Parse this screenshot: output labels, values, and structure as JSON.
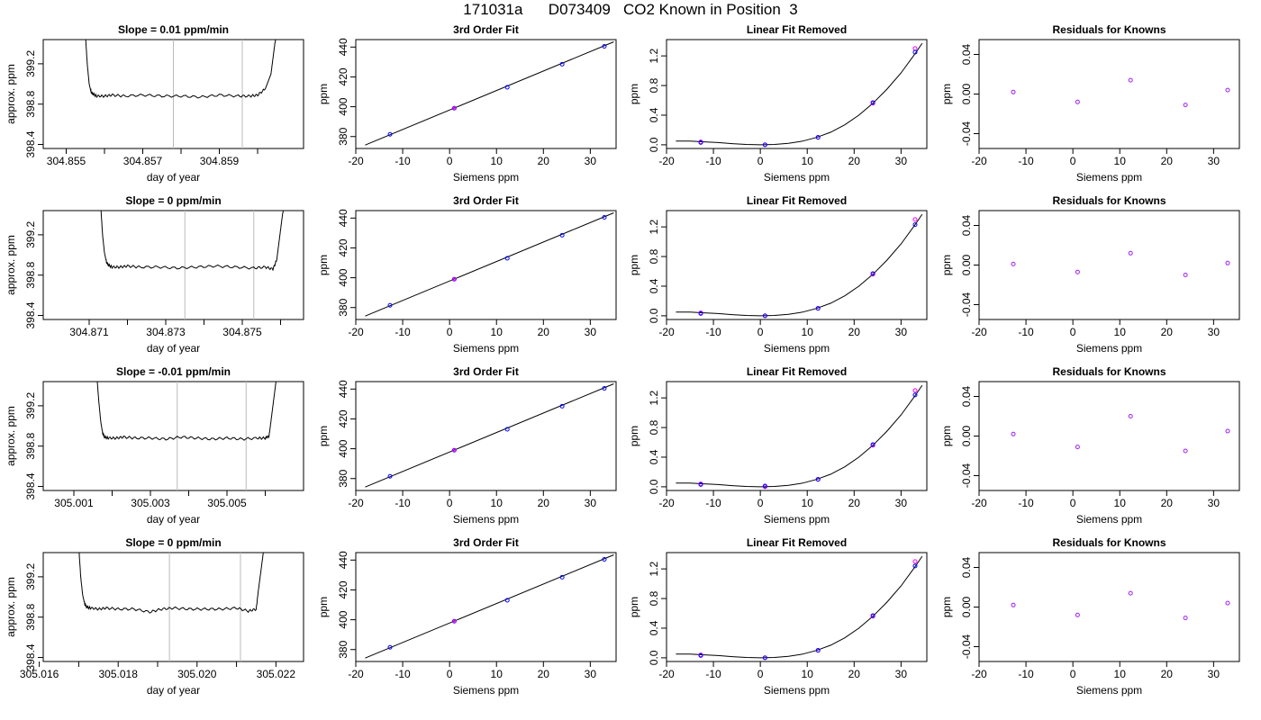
{
  "main_title": "171031a      D073409   CO2 Known in Position  3",
  "colors": {
    "frame": "#000000",
    "trace": "#000000",
    "fit_line": "#000000",
    "window_marker": "#bbbbbb",
    "known_points": "#0000ff",
    "fit_points": "#ff00ff",
    "residual_points": "#a020f0"
  },
  "chart_data": [
    {
      "type": "line",
      "title": "Slope =  0.01  ppm/min",
      "xlabel": "day of year",
      "ylabel": "approx. ppm",
      "xlim": [
        304.8544,
        304.8612
      ],
      "ylim": [
        398.36,
        399.44
      ],
      "xticks": [
        304.855,
        304.857,
        304.859
      ],
      "xticks_minor": [
        304.856,
        304.858,
        304.86
      ],
      "yticks": [
        398.4,
        398.8,
        399.2
      ],
      "window": [
        304.8578,
        304.8596
      ],
      "trace": {
        "x": [
          304.8555,
          304.85555,
          304.8556,
          304.85565,
          304.8557,
          304.8558,
          304.856,
          304.8562,
          304.8565,
          304.857,
          304.8575,
          304.858,
          304.8585,
          304.859,
          304.8595,
          304.8598,
          304.86,
          304.8602,
          304.86035,
          304.8604,
          304.86045,
          304.8605
        ],
        "y": [
          399.5,
          399.2,
          399.0,
          398.92,
          398.9,
          398.88,
          398.88,
          398.89,
          398.88,
          398.89,
          398.88,
          398.88,
          398.87,
          398.89,
          398.88,
          398.88,
          398.89,
          398.95,
          399.1,
          399.25,
          399.4,
          399.5
        ]
      },
      "grid": false
    },
    {
      "type": "scatter",
      "title": "3rd Order Fit",
      "xlabel": "Siemens ppm",
      "ylabel": "ppm",
      "xlim": [
        -20,
        35.5
      ],
      "ylim": [
        372,
        445
      ],
      "xticks": [
        -20,
        -10,
        0,
        10,
        20,
        30
      ],
      "yticks": [
        380,
        400,
        420,
        440
      ],
      "points": {
        "x": [
          -12.7,
          1.0,
          12.3,
          24.0,
          33.0
        ],
        "y": [
          381.5,
          399.0,
          413.0,
          428.5,
          440.5
        ]
      },
      "fit_line": {
        "x": [
          -18,
          35
        ],
        "y": [
          374.3,
          443.5
        ]
      },
      "grid": false
    },
    {
      "type": "scatter",
      "title": "Linear Fit Removed",
      "xlabel": "Siemens ppm",
      "ylabel": "ppm",
      "xlim": [
        -20,
        35.5
      ],
      "ylim": [
        -0.05,
        1.42
      ],
      "xticks": [
        -20,
        -10,
        0,
        10,
        20,
        30
      ],
      "yticks": [
        0.0,
        0.4,
        0.8,
        1.2
      ],
      "points": {
        "x": [
          -12.7,
          1.0,
          12.3,
          24.0,
          33.0
        ],
        "y": [
          0.03,
          0.0,
          0.1,
          0.57,
          1.25
        ]
      },
      "fit_points": {
        "x": [
          -12.7,
          1.0,
          12.3,
          24.0,
          33.0
        ],
        "y": [
          0.04,
          0.0,
          0.1,
          0.56,
          1.3
        ]
      },
      "fit_curve": {
        "x": [
          -18,
          -15,
          -12,
          -9,
          -6,
          -3,
          0,
          3,
          6,
          9,
          12,
          15,
          18,
          21,
          24,
          27,
          30,
          33,
          34.5
        ],
        "y": [
          0.05,
          0.05,
          0.04,
          0.03,
          0.015,
          0.005,
          0.0,
          0.005,
          0.02,
          0.05,
          0.1,
          0.17,
          0.27,
          0.4,
          0.56,
          0.75,
          0.97,
          1.23,
          1.37
        ]
      },
      "grid": false
    },
    {
      "type": "scatter",
      "title": "Residuals for Knowns",
      "xlabel": "Siemens ppm",
      "ylabel": "ppm",
      "xlim": [
        -20,
        35.5
      ],
      "ylim": [
        -0.055,
        0.055
      ],
      "xticks": [
        -20,
        -10,
        0,
        10,
        20,
        30
      ],
      "yticks": [
        -0.04,
        0.0,
        0.04
      ],
      "points": {
        "x": [
          -12.7,
          1.0,
          12.3,
          24.0,
          33.0
        ],
        "y": [
          0.002,
          -0.008,
          0.014,
          -0.011,
          0.004
        ]
      },
      "grid": false
    },
    {
      "type": "line",
      "title": "Slope =  0  ppm/min",
      "xlabel": "day of year",
      "ylabel": "approx. ppm",
      "xlim": [
        304.8698,
        304.8766
      ],
      "ylim": [
        398.36,
        399.44
      ],
      "xticks": [
        304.871,
        304.873,
        304.875
      ],
      "xticks_minor": [
        304.872,
        304.874,
        304.876
      ],
      "yticks": [
        398.4,
        398.8,
        399.2
      ],
      "window": [
        304.8735,
        304.8753
      ],
      "trace": {
        "x": [
          304.8713,
          304.87135,
          304.8714,
          304.87145,
          304.8715,
          304.8716,
          304.8718,
          304.872,
          304.8723,
          304.8728,
          304.8733,
          304.8738,
          304.8743,
          304.8748,
          304.8753,
          304.8756,
          304.8758,
          304.8759,
          304.87595,
          304.876,
          304.87605,
          304.8761
        ],
        "y": [
          399.5,
          399.2,
          399.02,
          398.93,
          398.9,
          398.88,
          398.88,
          398.89,
          398.88,
          398.88,
          398.87,
          398.88,
          398.89,
          398.88,
          398.87,
          398.88,
          398.86,
          398.95,
          399.1,
          399.25,
          399.4,
          399.5
        ]
      },
      "grid": false
    },
    {
      "type": "scatter",
      "title": "3rd Order Fit",
      "xlabel": "Siemens ppm",
      "ylabel": "ppm",
      "xlim": [
        -20,
        35.5
      ],
      "ylim": [
        372,
        445
      ],
      "xticks": [
        -20,
        -10,
        0,
        10,
        20,
        30
      ],
      "yticks": [
        380,
        400,
        420,
        440
      ],
      "points": {
        "x": [
          -12.7,
          1.0,
          12.3,
          24.0,
          33.0
        ],
        "y": [
          381.5,
          399.0,
          413.0,
          428.5,
          440.5
        ]
      },
      "fit_line": {
        "x": [
          -18,
          35
        ],
        "y": [
          374.3,
          443.5
        ]
      },
      "grid": false
    },
    {
      "type": "scatter",
      "title": "Linear Fit Removed",
      "xlabel": "Siemens ppm",
      "ylabel": "ppm",
      "xlim": [
        -20,
        35.5
      ],
      "ylim": [
        -0.05,
        1.42
      ],
      "xticks": [
        -20,
        -10,
        0,
        10,
        20,
        30
      ],
      "yticks": [
        0.0,
        0.4,
        0.8,
        1.2
      ],
      "points": {
        "x": [
          -12.7,
          1.0,
          12.3,
          24.0,
          33.0
        ],
        "y": [
          0.03,
          0.0,
          0.1,
          0.57,
          1.23
        ]
      },
      "fit_points": {
        "x": [
          -12.7,
          1.0,
          12.3,
          24.0,
          33.0
        ],
        "y": [
          0.04,
          0.0,
          0.1,
          0.56,
          1.3
        ]
      },
      "fit_curve": {
        "x": [
          -18,
          -15,
          -12,
          -9,
          -6,
          -3,
          0,
          3,
          6,
          9,
          12,
          15,
          18,
          21,
          24,
          27,
          30,
          33,
          34.5
        ],
        "y": [
          0.05,
          0.05,
          0.04,
          0.03,
          0.015,
          0.005,
          0.0,
          0.005,
          0.02,
          0.05,
          0.1,
          0.17,
          0.27,
          0.4,
          0.56,
          0.75,
          0.97,
          1.23,
          1.37
        ]
      },
      "grid": false
    },
    {
      "type": "scatter",
      "title": "Residuals for Knowns",
      "xlabel": "Siemens ppm",
      "ylabel": "ppm",
      "xlim": [
        -20,
        35.5
      ],
      "ylim": [
        -0.055,
        0.055
      ],
      "xticks": [
        -20,
        -10,
        0,
        10,
        20,
        30
      ],
      "yticks": [
        -0.04,
        0.0,
        0.04
      ],
      "points": {
        "x": [
          -12.7,
          1.0,
          12.3,
          24.0,
          33.0
        ],
        "y": [
          0.001,
          -0.007,
          0.012,
          -0.01,
          0.002
        ]
      },
      "grid": false
    },
    {
      "type": "line",
      "title": "Slope =  -0.01  ppm/min",
      "xlabel": "day of year",
      "ylabel": "approx. ppm",
      "xlim": [
        305.0002,
        305.007
      ],
      "ylim": [
        398.36,
        399.44
      ],
      "xticks": [
        305.001,
        305.003,
        305.005
      ],
      "xticks_minor": [
        305.002,
        305.004,
        305.006
      ],
      "yticks": [
        398.4,
        398.8,
        399.2
      ],
      "window": [
        305.0037,
        305.0055
      ],
      "trace": {
        "x": [
          305.0016,
          305.00165,
          305.0017,
          305.00175,
          305.0018,
          305.0019,
          305.0021,
          305.0023,
          305.0026,
          305.003,
          305.0034,
          305.0038,
          305.0042,
          305.0046,
          305.005,
          305.0054,
          305.0058,
          305.006,
          305.0061,
          305.00615,
          305.0062,
          305.00625,
          305.0063
        ],
        "y": [
          399.5,
          399.25,
          399.05,
          398.93,
          398.89,
          398.88,
          398.88,
          398.89,
          398.88,
          398.88,
          398.87,
          398.89,
          398.88,
          398.87,
          398.88,
          398.87,
          398.88,
          398.88,
          398.9,
          399.05,
          399.2,
          399.35,
          399.5
        ]
      },
      "grid": false
    },
    {
      "type": "scatter",
      "title": "3rd Order Fit",
      "xlabel": "Siemens ppm",
      "ylabel": "ppm",
      "xlim": [
        -20,
        35.5
      ],
      "ylim": [
        372,
        445
      ],
      "xticks": [
        -20,
        -10,
        0,
        10,
        20,
        30
      ],
      "yticks": [
        380,
        400,
        420,
        440
      ],
      "points": {
        "x": [
          -12.7,
          1.0,
          12.3,
          24.0,
          33.0
        ],
        "y": [
          381.5,
          399.0,
          413.0,
          428.5,
          440.5
        ]
      },
      "fit_line": {
        "x": [
          -18,
          35
        ],
        "y": [
          374.3,
          443.5
        ]
      },
      "grid": false
    },
    {
      "type": "scatter",
      "title": "Linear Fit Removed",
      "xlabel": "Siemens ppm",
      "ylabel": "ppm",
      "xlim": [
        -20,
        35.5
      ],
      "ylim": [
        -0.05,
        1.42
      ],
      "xticks": [
        -20,
        -10,
        0,
        10,
        20,
        30
      ],
      "yticks": [
        0.0,
        0.4,
        0.8,
        1.2
      ],
      "points": {
        "x": [
          -12.7,
          1.0,
          12.3,
          24.0,
          33.0
        ],
        "y": [
          0.03,
          0.01,
          0.1,
          0.57,
          1.24
        ]
      },
      "fit_points": {
        "x": [
          -12.7,
          1.0,
          12.3,
          24.0,
          33.0
        ],
        "y": [
          0.04,
          0.0,
          0.1,
          0.56,
          1.3
        ]
      },
      "fit_curve": {
        "x": [
          -18,
          -15,
          -12,
          -9,
          -6,
          -3,
          0,
          3,
          6,
          9,
          12,
          15,
          18,
          21,
          24,
          27,
          30,
          33,
          34.5
        ],
        "y": [
          0.05,
          0.05,
          0.04,
          0.03,
          0.015,
          0.005,
          0.0,
          0.005,
          0.02,
          0.05,
          0.1,
          0.17,
          0.27,
          0.4,
          0.56,
          0.75,
          0.97,
          1.23,
          1.37
        ]
      },
      "grid": false
    },
    {
      "type": "scatter",
      "title": "Residuals for Knowns",
      "xlabel": "Siemens ppm",
      "ylabel": "ppm",
      "xlim": [
        -20,
        35.5
      ],
      "ylim": [
        -0.055,
        0.055
      ],
      "xticks": [
        -20,
        -10,
        0,
        10,
        20,
        30
      ],
      "yticks": [
        -0.04,
        0.0,
        0.04
      ],
      "points": {
        "x": [
          -12.7,
          1.0,
          12.3,
          24.0,
          33.0
        ],
        "y": [
          0.002,
          -0.011,
          0.02,
          -0.015,
          0.005
        ]
      },
      "grid": false
    },
    {
      "type": "line",
      "title": "Slope =  0  ppm/min",
      "xlabel": "day of year",
      "ylabel": "approx. ppm",
      "xlim": [
        305.0161,
        305.0227
      ],
      "ylim": [
        398.36,
        399.44
      ],
      "xticks": [
        305.016,
        305.018,
        305.02,
        305.022
      ],
      "xticks_labels": [
        "305.016",
        "305.018",
        "305.020",
        "305.022"
      ],
      "xticks_minor": [
        305.017,
        305.019,
        305.021
      ],
      "yticks": [
        398.4,
        398.8,
        399.2
      ],
      "window": [
        305.0193,
        305.0211
      ],
      "trace": {
        "x": [
          305.017,
          305.01705,
          305.0171,
          305.01715,
          305.0172,
          305.0173,
          305.0175,
          305.0177,
          305.018,
          305.0184,
          305.0188,
          305.0191,
          305.0194,
          305.0198,
          305.0202,
          305.0206,
          305.021,
          305.0213,
          305.0215,
          305.02155,
          305.0216,
          305.02165,
          305.0217
        ],
        "y": [
          399.5,
          399.2,
          399.02,
          398.93,
          398.9,
          398.89,
          398.88,
          398.89,
          398.88,
          398.88,
          398.85,
          398.88,
          398.89,
          398.88,
          398.88,
          398.88,
          398.89,
          398.86,
          398.88,
          399.05,
          399.2,
          399.35,
          399.5
        ]
      },
      "grid": false
    },
    {
      "type": "scatter",
      "title": "3rd Order Fit",
      "xlabel": "Siemens ppm",
      "ylabel": "ppm",
      "xlim": [
        -20,
        35.5
      ],
      "ylim": [
        372,
        445
      ],
      "xticks": [
        -20,
        -10,
        0,
        10,
        20,
        30
      ],
      "yticks": [
        380,
        400,
        420,
        440
      ],
      "points": {
        "x": [
          -12.7,
          1.0,
          12.3,
          24.0,
          33.0
        ],
        "y": [
          381.5,
          399.0,
          413.0,
          428.5,
          440.5
        ]
      },
      "fit_line": {
        "x": [
          -18,
          35
        ],
        "y": [
          374.3,
          443.5
        ]
      },
      "grid": false
    },
    {
      "type": "scatter",
      "title": "Linear Fit Removed",
      "xlabel": "Siemens ppm",
      "ylabel": "ppm",
      "xlim": [
        -20,
        35.5
      ],
      "ylim": [
        -0.05,
        1.42
      ],
      "xticks": [
        -20,
        -10,
        0,
        10,
        20,
        30
      ],
      "yticks": [
        0.0,
        0.4,
        0.8,
        1.2
      ],
      "points": {
        "x": [
          -12.7,
          1.0,
          12.3,
          24.0,
          33.0
        ],
        "y": [
          0.03,
          0.0,
          0.1,
          0.57,
          1.24
        ]
      },
      "fit_points": {
        "x": [
          -12.7,
          1.0,
          12.3,
          24.0,
          33.0
        ],
        "y": [
          0.04,
          0.0,
          0.1,
          0.56,
          1.3
        ]
      },
      "fit_curve": {
        "x": [
          -18,
          -15,
          -12,
          -9,
          -6,
          -3,
          0,
          3,
          6,
          9,
          12,
          15,
          18,
          21,
          24,
          27,
          30,
          33,
          34.5
        ],
        "y": [
          0.05,
          0.05,
          0.04,
          0.03,
          0.015,
          0.005,
          0.0,
          0.005,
          0.02,
          0.05,
          0.1,
          0.17,
          0.27,
          0.4,
          0.56,
          0.75,
          0.97,
          1.23,
          1.37
        ]
      },
      "grid": false
    },
    {
      "type": "scatter",
      "title": "Residuals for Knowns",
      "xlabel": "Siemens ppm",
      "ylabel": "ppm",
      "xlim": [
        -20,
        35.5
      ],
      "ylim": [
        -0.055,
        0.055
      ],
      "xticks": [
        -20,
        -10,
        0,
        10,
        20,
        30
      ],
      "yticks": [
        -0.04,
        0.0,
        0.04
      ],
      "points": {
        "x": [
          -12.7,
          1.0,
          12.3,
          24.0,
          33.0
        ],
        "y": [
          0.002,
          -0.008,
          0.014,
          -0.011,
          0.004
        ]
      },
      "grid": false
    }
  ]
}
